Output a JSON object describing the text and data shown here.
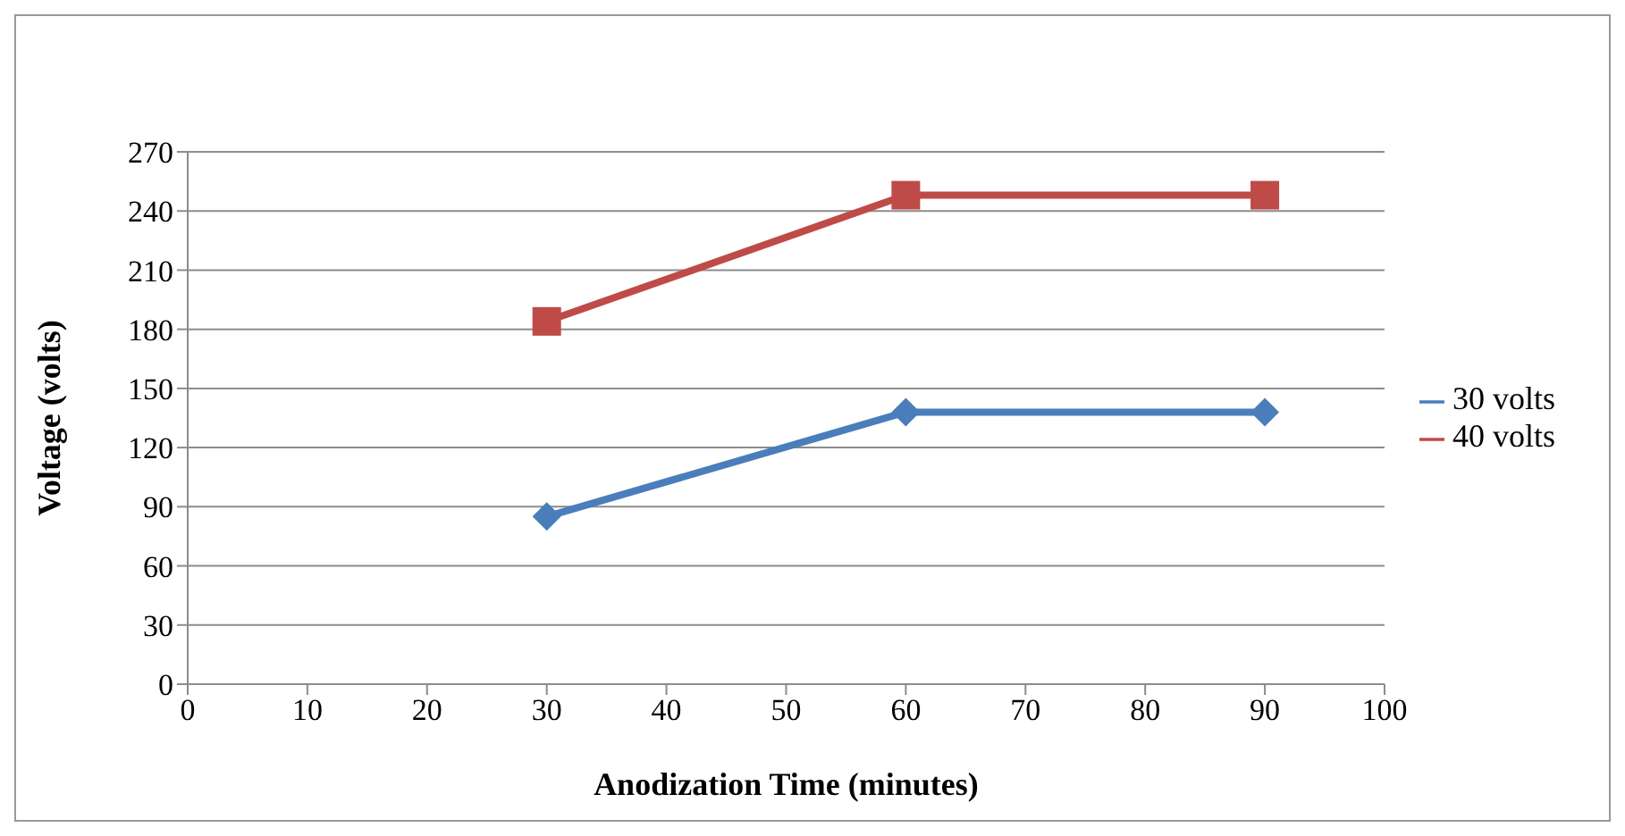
{
  "chart_data": {
    "type": "line",
    "xlabel": "Anodization Time  (minutes)",
    "ylabel": "Voltage (volts)",
    "x": [
      30,
      60,
      90
    ],
    "series": [
      {
        "name": "30 volts",
        "color": "#4a7ebb",
        "values": [
          85,
          138,
          138
        ],
        "marker": "diamond"
      },
      {
        "name": "40 volts",
        "color": "#be4b48",
        "values": [
          184,
          248,
          248
        ],
        "marker": "square"
      }
    ],
    "xlim": [
      0,
      100
    ],
    "xticks": [
      0,
      10,
      20,
      30,
      40,
      50,
      60,
      70,
      80,
      90,
      100
    ],
    "ylim": [
      0,
      270
    ],
    "yticks": [
      0,
      30,
      60,
      90,
      120,
      150,
      180,
      210,
      240,
      270
    ],
    "grid": "y",
    "legend": "right",
    "line_style": "solid"
  }
}
